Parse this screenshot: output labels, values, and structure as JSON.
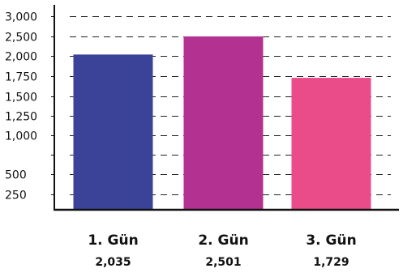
{
  "chart_data": {
    "type": "bar",
    "categories": [
      "1. Gün",
      "2. Gün",
      "3. Gün"
    ],
    "values": [
      2035,
      2501,
      1729
    ],
    "value_labels": [
      "2,035",
      "2,501",
      "1,729"
    ],
    "colors": [
      "#3a4397",
      "#b33291",
      "#e94c89"
    ],
    "yticks": [
      250,
      500,
      750,
      1000,
      1250,
      1500,
      1750,
      2000,
      2500,
      3000
    ],
    "ytick_labels": [
      "250",
      "500",
      "",
      "1,000",
      "1,250",
      "1,500",
      "1,750",
      "2,000",
      "2,500",
      "3,000"
    ],
    "ylim": [
      0,
      3000
    ],
    "grid": "dashed-horizontal",
    "legend": "none"
  }
}
